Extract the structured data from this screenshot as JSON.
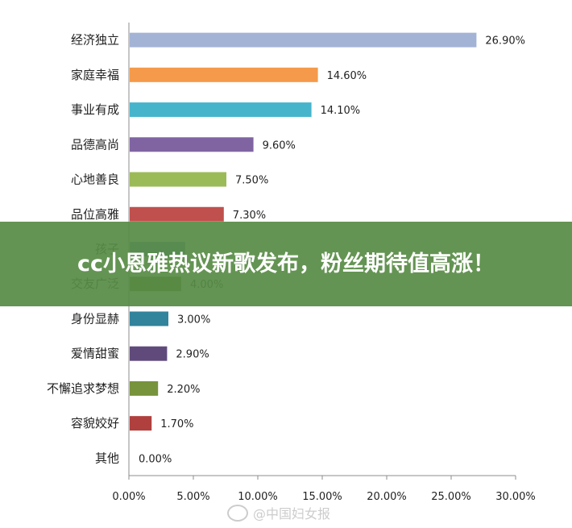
{
  "chart_data": {
    "type": "bar",
    "orientation": "horizontal",
    "categories": [
      "经济独立",
      "家庭幸福",
      "事业有成",
      "品德高尚",
      "心地善良",
      "品位高雅",
      "孩子",
      "交友广泛",
      "身份显赫",
      "爱情甜蜜",
      "不懈追求梦想",
      "容貌姣好",
      "其他"
    ],
    "values": [
      26.9,
      14.6,
      14.1,
      9.6,
      7.5,
      7.3,
      4.3,
      4.0,
      3.0,
      2.9,
      2.2,
      1.7,
      0.0
    ],
    "value_labels": [
      "26.90%",
      "14.60%",
      "14.10%",
      "9.60%",
      "7.50%",
      "7.30%",
      "",
      "4.00%",
      "3.00%",
      "2.90%",
      "2.20%",
      "1.70%",
      "0.00%"
    ],
    "colors": [
      "#a3b3d6",
      "#f59a4a",
      "#46b5cc",
      "#8064a2",
      "#9bbb59",
      "#c0504d",
      "#4f81bd",
      "#5f7530",
      "#31849b",
      "#604a7b",
      "#77933c",
      "#b0403d",
      "#4f81bd"
    ],
    "xlim": [
      0,
      30
    ],
    "x_ticks": [
      "0.00%",
      "5.00%",
      "10.00%",
      "15.00%",
      "20.00%",
      "25.00%",
      "30.00%"
    ],
    "grid": false
  },
  "banner": {
    "text": "cc小恩雅热议新歌发布，粉丝期待值高涨！"
  },
  "watermark": {
    "text": "@中国妇女报"
  }
}
